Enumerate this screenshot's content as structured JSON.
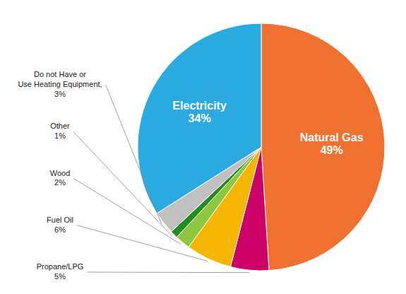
{
  "chart_data": {
    "type": "pie",
    "categories": [
      "Natural Gas",
      "Propane/LPG",
      "Fuel Oil",
      "Wood",
      "Other",
      "Do not Have or\nUse Heating Equipment,",
      "Electricity"
    ],
    "values": [
      49,
      5,
      6,
      2,
      1,
      3,
      34
    ],
    "value_labels": [
      "49%",
      "5%",
      "6%",
      "2%",
      "1%",
      "3%",
      "34%"
    ],
    "colors": [
      "#F07030",
      "#CC0066",
      "#F5B500",
      "#8DC63F",
      "#228B22",
      "#C0C0C0",
      "#29ABE2"
    ]
  }
}
